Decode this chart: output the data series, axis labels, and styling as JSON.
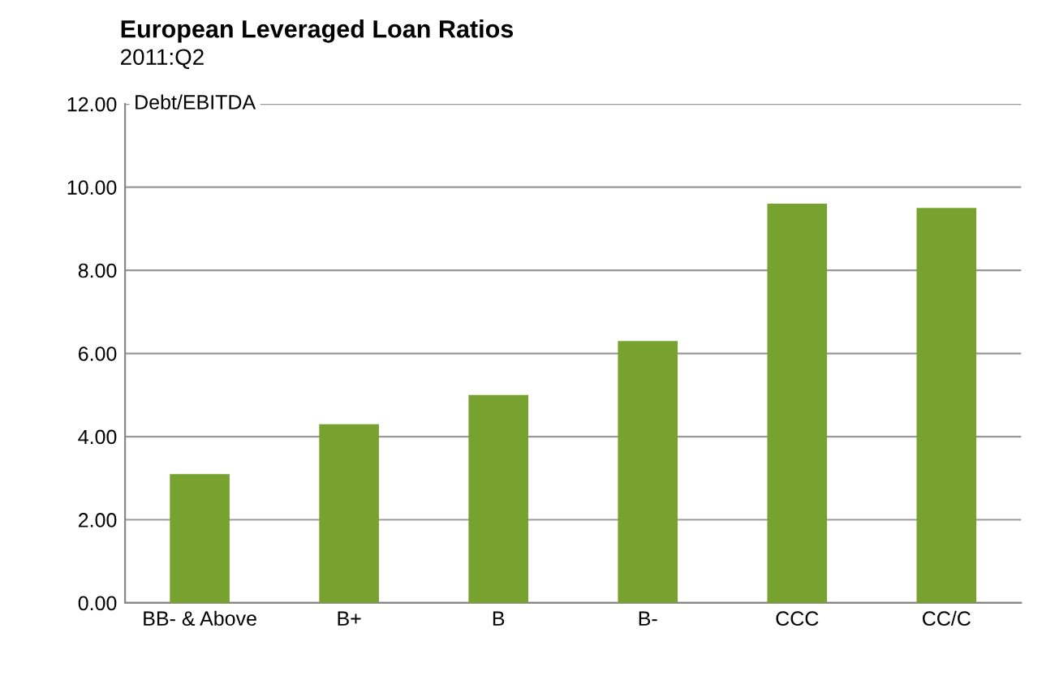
{
  "chart_data": {
    "type": "bar",
    "title": "European Leveraged Loan Ratios",
    "subtitle": "2011:Q2",
    "ylabel": "Debt/EBITDA",
    "categories": [
      "BB- & Above",
      "B+",
      "B",
      "B-",
      "CCC",
      "CC/C"
    ],
    "values": [
      3.1,
      4.3,
      5.0,
      6.3,
      9.6,
      9.5
    ],
    "color": "#78a22f",
    "ylim": [
      0,
      12
    ],
    "yticks": [
      {
        "value": 0,
        "label": "0.00"
      },
      {
        "value": 2,
        "label": "2.00"
      },
      {
        "value": 4,
        "label": "4.00"
      },
      {
        "value": 6,
        "label": "6.00"
      },
      {
        "value": 8,
        "label": "8.00"
      },
      {
        "value": 10,
        "label": "10.00"
      },
      {
        "value": 12,
        "label": "12.00"
      }
    ],
    "grid": "y"
  }
}
